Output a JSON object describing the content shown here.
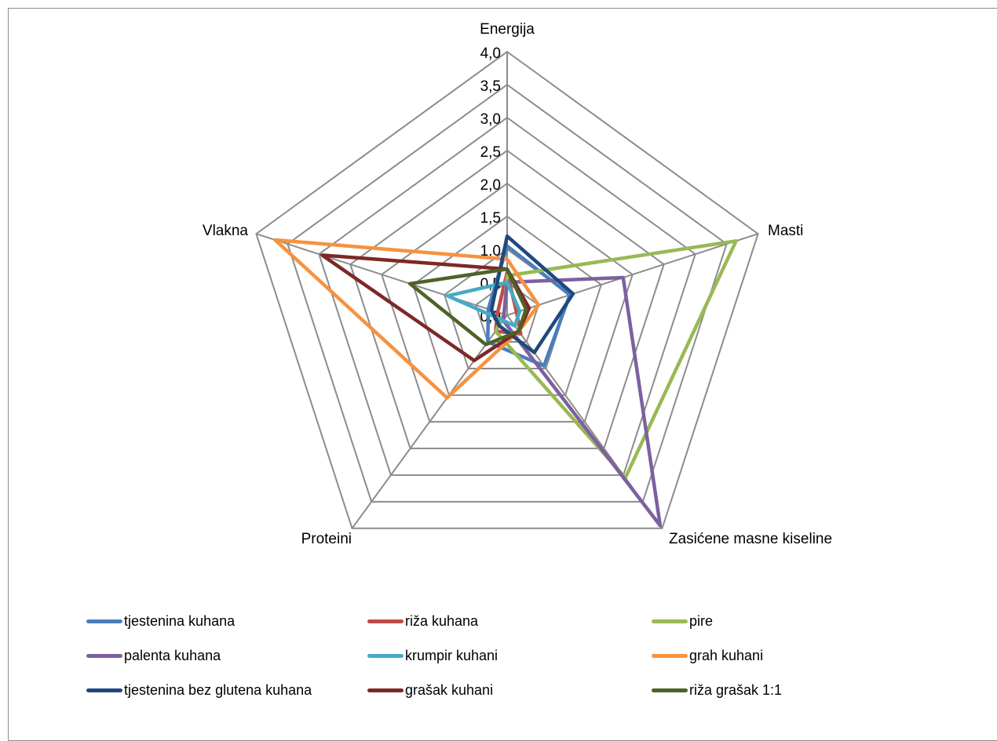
{
  "chart_data": {
    "type": "radar",
    "axes": [
      "Energija",
      "Masti",
      "Zasićene masne kiseline",
      "Proteini",
      "Vlakna"
    ],
    "rlim": [
      0,
      4
    ],
    "ticks": [
      "0,0",
      "0,5",
      "1,0",
      "1,5",
      "2,0",
      "2,5",
      "3,0",
      "3,5",
      "4,0"
    ],
    "grid": true,
    "legend_position": "bottom",
    "series": [
      {
        "name": "tjestenina kuhana",
        "color": "#4a7ebb",
        "values": [
          1.05,
          1.0,
          0.95,
          0.5,
          0.3
        ]
      },
      {
        "name": "riža kuhana",
        "color": "#be4b48",
        "values": [
          0.65,
          0.15,
          0.35,
          0.3,
          0.15
        ]
      },
      {
        "name": "pire",
        "color": "#98b954",
        "values": [
          0.6,
          3.65,
          3.05,
          0.3,
          0.05
        ]
      },
      {
        "name": "palenta kuhana",
        "color": "#7d60a0",
        "values": [
          0.5,
          1.85,
          3.95,
          0.1,
          0.05
        ]
      },
      {
        "name": "krumpir kuhani",
        "color": "#46aac5",
        "values": [
          0.5,
          0.2,
          0.2,
          0.1,
          0.95
        ]
      },
      {
        "name": "grah kuhani",
        "color": "#f69240",
        "values": [
          0.85,
          0.5,
          0.3,
          1.55,
          3.7
        ]
      },
      {
        "name": "tjestenina bez glutena kuhana",
        "color": "#1f497d",
        "values": [
          1.2,
          1.05,
          0.7,
          0.2,
          0.25
        ]
      },
      {
        "name": "grašak kuhani",
        "color": "#7d2826",
        "values": [
          0.7,
          0.35,
          0.3,
          0.85,
          2.95
        ]
      },
      {
        "name": "riža grašak 1:1",
        "color": "#4f6228",
        "values": [
          0.7,
          0.3,
          0.3,
          0.55,
          1.55
        ]
      }
    ]
  }
}
